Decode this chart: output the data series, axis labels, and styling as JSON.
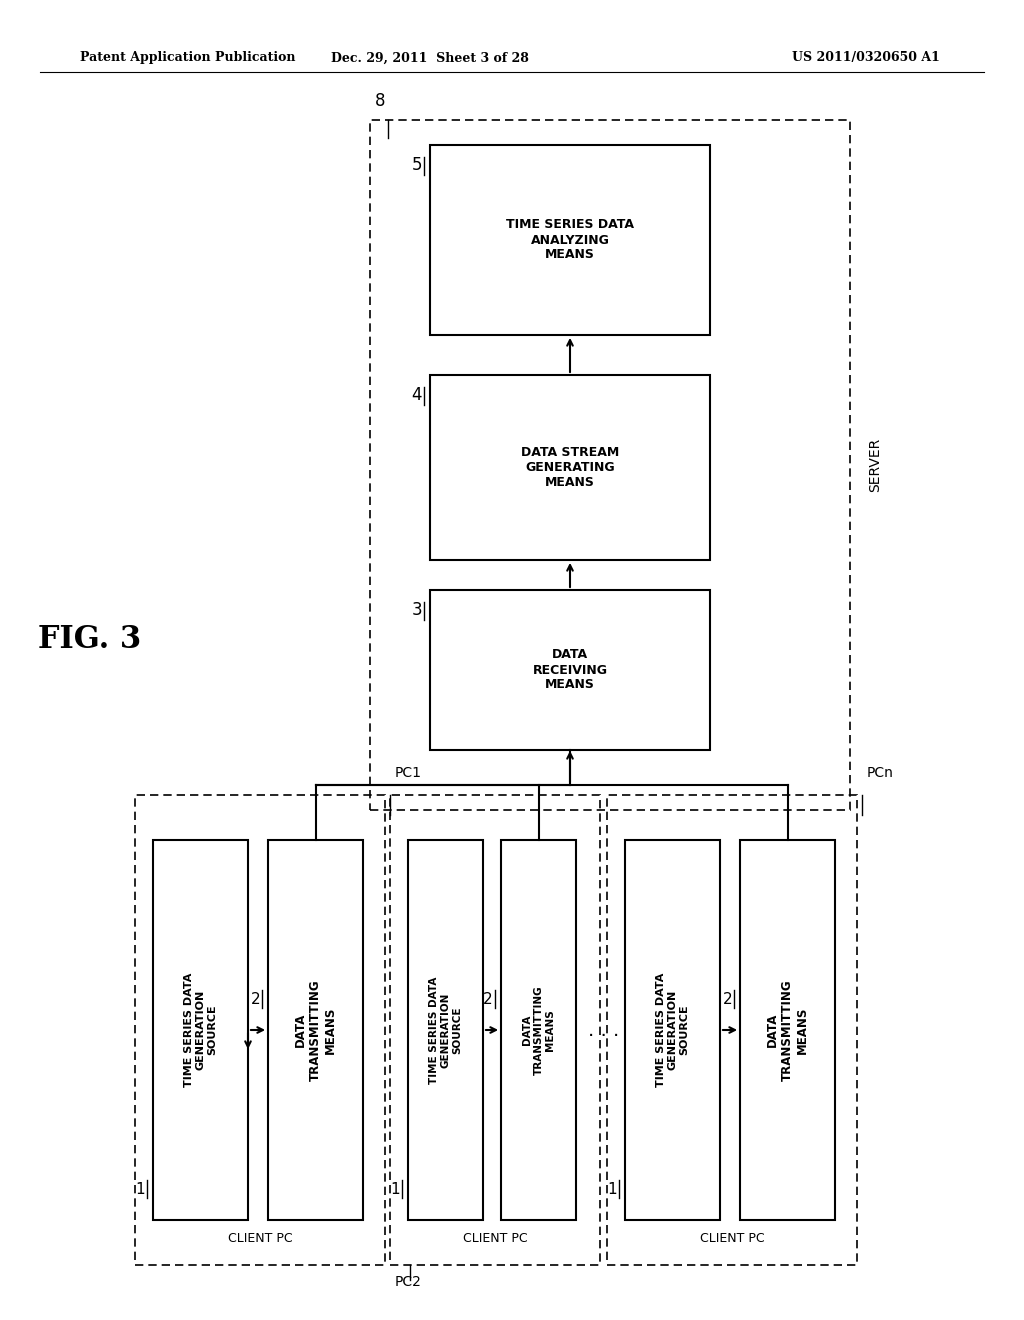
{
  "bg_color": "#ffffff",
  "header_left": "Patent Application Publication",
  "header_mid": "Dec. 29, 2011  Sheet 3 of 28",
  "header_right": "US 2011/0320650 A1",
  "fig_label": "FIG. 3"
}
